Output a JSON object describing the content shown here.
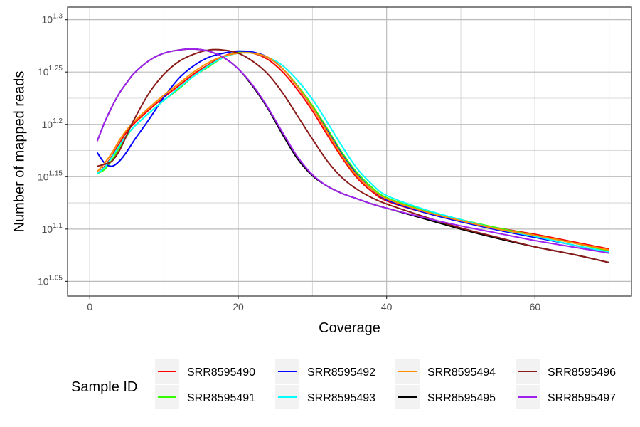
{
  "chart_data": {
    "type": "line",
    "title": "",
    "xlabel": "Coverage",
    "ylabel": "Number of mapped reads",
    "xlim": [
      -3,
      73
    ],
    "ylim": [
      1.036,
      1.312
    ],
    "y_scale": "log10",
    "x_ticks": [
      0,
      20,
      40,
      60
    ],
    "x_tick_labels": [
      "0",
      "20",
      "40",
      "60"
    ],
    "y_ticks": [
      1.05,
      1.1,
      1.15,
      1.2,
      1.25,
      1.3
    ],
    "y_tick_base": "10",
    "y_tick_exponents": [
      "1.05",
      "1.1",
      "1.15",
      "1.2",
      "1.25",
      "1.3"
    ],
    "grid": true,
    "legend_title": "Sample ID",
    "legend_position": "bottom",
    "x": [
      1,
      2,
      3,
      4,
      5,
      6,
      8,
      10,
      12,
      14,
      16,
      18,
      20,
      22,
      24,
      26,
      28,
      30,
      32,
      34,
      36,
      38,
      40,
      45,
      50,
      55,
      60,
      65,
      70
    ],
    "series": [
      {
        "name": "SRR8595490",
        "color": "#ff0000",
        "values": [
          1.153,
          1.16,
          1.17,
          1.182,
          1.193,
          1.201,
          1.214,
          1.226,
          1.237,
          1.248,
          1.257,
          1.265,
          1.269,
          1.268,
          1.262,
          1.25,
          1.233,
          1.213,
          1.19,
          1.168,
          1.149,
          1.136,
          1.127,
          1.116,
          1.108,
          1.101,
          1.095,
          1.088,
          1.081
        ]
      },
      {
        "name": "SRR8595491",
        "color": "#33ff00",
        "values": [
          1.153,
          1.157,
          1.166,
          1.178,
          1.189,
          1.198,
          1.211,
          1.223,
          1.234,
          1.246,
          1.255,
          1.264,
          1.269,
          1.268,
          1.264,
          1.253,
          1.237,
          1.218,
          1.196,
          1.173,
          1.154,
          1.14,
          1.13,
          1.118,
          1.109,
          1.101,
          1.094,
          1.087,
          1.079
        ]
      },
      {
        "name": "SRR8595492",
        "color": "#0000ff",
        "values": [
          1.173,
          1.163,
          1.16,
          1.165,
          1.174,
          1.185,
          1.205,
          1.226,
          1.244,
          1.256,
          1.264,
          1.268,
          1.27,
          1.269,
          1.264,
          1.253,
          1.236,
          1.216,
          1.194,
          1.171,
          1.152,
          1.138,
          1.128,
          1.116,
          1.107,
          1.099,
          1.092,
          1.085,
          1.077
        ]
      },
      {
        "name": "SRR8595493",
        "color": "#00ffff",
        "values": [
          1.153,
          1.159,
          1.169,
          1.18,
          1.19,
          1.198,
          1.211,
          1.223,
          1.235,
          1.246,
          1.256,
          1.264,
          1.268,
          1.268,
          1.264,
          1.256,
          1.242,
          1.224,
          1.202,
          1.179,
          1.158,
          1.143,
          1.132,
          1.119,
          1.109,
          1.1,
          1.093,
          1.085,
          1.078
        ]
      },
      {
        "name": "SRR8595494",
        "color": "#ff8c00",
        "values": [
          1.155,
          1.163,
          1.173,
          1.185,
          1.195,
          1.203,
          1.216,
          1.228,
          1.239,
          1.25,
          1.259,
          1.265,
          1.268,
          1.268,
          1.264,
          1.253,
          1.236,
          1.216,
          1.193,
          1.17,
          1.151,
          1.138,
          1.129,
          1.117,
          1.108,
          1.1,
          1.094,
          1.087,
          1.08
        ]
      },
      {
        "name": "SRR8595495",
        "color": "#000000",
        "values": [
          1.184,
          1.202,
          1.217,
          1.23,
          1.24,
          1.249,
          1.261,
          1.268,
          1.271,
          1.272,
          1.27,
          1.264,
          1.253,
          1.236,
          1.215,
          1.19,
          1.167,
          1.151,
          1.141,
          1.134,
          1.129,
          1.124,
          1.12,
          1.11,
          1.1,
          1.091,
          1.083,
          1.076,
          1.068
        ]
      },
      {
        "name": "SRR8595496",
        "color": "#8b1a1a",
        "values": [
          1.16,
          1.162,
          1.165,
          1.175,
          1.19,
          1.205,
          1.23,
          1.248,
          1.26,
          1.267,
          1.271,
          1.271,
          1.268,
          1.26,
          1.248,
          1.23,
          1.208,
          1.186,
          1.165,
          1.149,
          1.138,
          1.13,
          1.124,
          1.112,
          1.101,
          1.092,
          1.083,
          1.076,
          1.068
        ]
      },
      {
        "name": "SRR8595497",
        "color": "#a020f0",
        "values": [
          1.184,
          1.202,
          1.217,
          1.23,
          1.24,
          1.249,
          1.261,
          1.268,
          1.271,
          1.272,
          1.27,
          1.264,
          1.253,
          1.237,
          1.216,
          1.192,
          1.169,
          1.152,
          1.141,
          1.134,
          1.129,
          1.124,
          1.12,
          1.111,
          1.103,
          1.096,
          1.089,
          1.083,
          1.077
        ]
      }
    ]
  }
}
